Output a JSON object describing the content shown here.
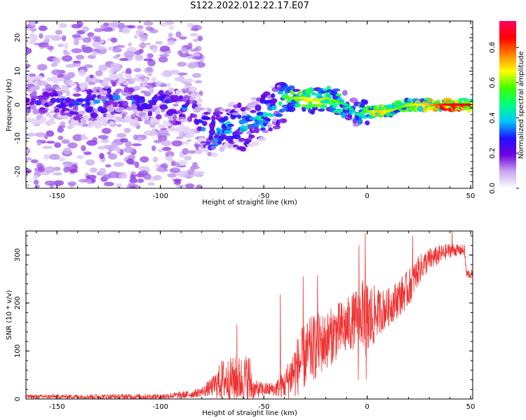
{
  "title": "S122.2022.012.22.17.E07",
  "chart_data": [
    {
      "type": "heatmap",
      "panel": "top",
      "xlabel": "Height of straight line (km)",
      "ylabel": "Frequency (Hz)",
      "xlim": [
        -165,
        51
      ],
      "ylim": [
        -25,
        25
      ],
      "xticks": [
        -150,
        -100,
        -50,
        0,
        50
      ],
      "yticks": [
        -20,
        -10,
        0,
        10,
        20
      ],
      "colorbar": {
        "label": "Normalized spectral amplitude",
        "range": [
          0,
          0.95
        ],
        "ticks": [
          0.0,
          0.2,
          0.4,
          0.6,
          0.8
        ],
        "colors": [
          "#ffffff",
          "#c8a8f0",
          "#7000e0",
          "#2010ff",
          "#00c8ff",
          "#00ff80",
          "#40ff00",
          "#ffff00",
          "#ff8000",
          "#ff0000",
          "#ff0060"
        ]
      },
      "ridge": {
        "x": [
          -165,
          -150,
          -135,
          -120,
          -105,
          -90,
          -85,
          -80,
          -75,
          -70,
          -65,
          -60,
          -55,
          -50,
          -45,
          -40,
          -35,
          -30,
          -25,
          -20,
          -15,
          -10,
          -5,
          0,
          5,
          10,
          15,
          20,
          25,
          30,
          35,
          40,
          45,
          50
        ],
        "y": [
          2,
          1,
          0,
          2,
          1,
          -1,
          -1,
          -6,
          -9,
          -7,
          -6,
          -7,
          -5,
          -4,
          -1,
          2,
          2,
          2,
          1,
          2,
          1,
          0,
          -3,
          -2,
          -2,
          -2,
          -1,
          0,
          0,
          0,
          0,
          0,
          0,
          0
        ],
        "amplitude": [
          0.3,
          0.3,
          0.35,
          0.35,
          0.35,
          0.35,
          0.35,
          0.4,
          0.45,
          0.45,
          0.45,
          0.45,
          0.45,
          0.5,
          0.45,
          0.55,
          0.65,
          0.7,
          0.7,
          0.65,
          0.6,
          0.5,
          0.45,
          0.6,
          0.75,
          0.7,
          0.6,
          0.65,
          0.7,
          0.75,
          0.85,
          0.9,
          0.9,
          0.9
        ]
      },
      "noise": {
        "x_extent": [
          -165,
          -80
        ],
        "y_extent": [
          -25,
          25
        ]
      }
    },
    {
      "type": "line",
      "panel": "bottom",
      "xlabel": "Height of straight line (km)",
      "ylabel": "SNR (10 * v/v)",
      "xlim": [
        -165,
        51
      ],
      "ylim": [
        0,
        350
      ],
      "xticks": [
        -150,
        -100,
        -50,
        0,
        50
      ],
      "yticks": [
        0,
        100,
        200,
        300
      ],
      "color": "#ee3333",
      "envelope": {
        "x": [
          -165,
          -100,
          -85,
          -80,
          -75,
          -70,
          -60,
          -57,
          -55,
          -50,
          -45,
          -40,
          -35,
          -30,
          -25,
          -20,
          -15,
          -10,
          -5,
          -2,
          0,
          5,
          10,
          15,
          20,
          25,
          30,
          35,
          40,
          45,
          47,
          48,
          51
        ],
        "base": [
          5,
          5,
          10,
          15,
          25,
          40,
          40,
          40,
          20,
          20,
          20,
          30,
          60,
          90,
          110,
          120,
          140,
          150,
          170,
          180,
          160,
          180,
          190,
          210,
          230,
          270,
          290,
          300,
          310,
          310,
          310,
          260,
          260
        ],
        "amp": [
          4,
          6,
          8,
          10,
          20,
          45,
          50,
          60,
          20,
          15,
          15,
          30,
          60,
          70,
          70,
          60,
          60,
          60,
          60,
          70,
          90,
          50,
          40,
          40,
          40,
          30,
          25,
          20,
          15,
          12,
          12,
          10,
          10
        ]
      },
      "spikes": [
        {
          "x": -63,
          "y": 155
        },
        {
          "x": -42,
          "y": 218
        },
        {
          "x": -31,
          "y": 255
        },
        {
          "x": -24,
          "y": 258
        },
        {
          "x": -1,
          "y": 345
        },
        {
          "x": -4,
          "y": 320
        },
        {
          "x": 22,
          "y": 340
        },
        {
          "x": 41,
          "y": 350
        }
      ]
    }
  ]
}
